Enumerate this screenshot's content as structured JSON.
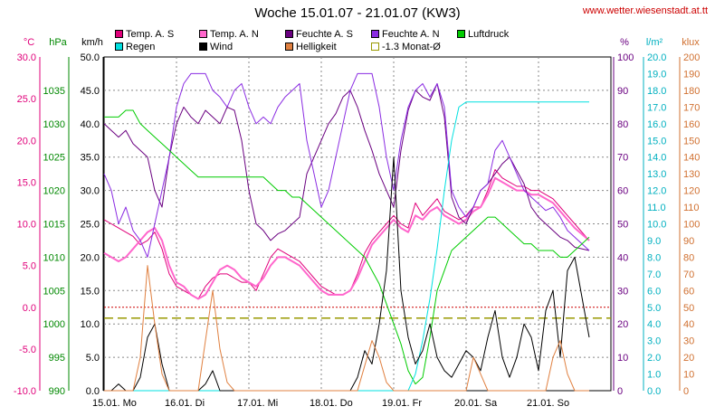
{
  "chart_data": {
    "type": "line",
    "title": "Woche 15.01.07 - 21.01.07 (KW3)",
    "source": "www.wetter.wiesenstadt.at.tt",
    "days": [
      "15.01. Mo",
      "16.01. Di",
      "17.01. Mi",
      "18.01. Do",
      "19.01. Fr",
      "20.01. Sa",
      "21.01. So"
    ],
    "axes": {
      "temp": {
        "unit": "°C",
        "color": "#e0007a",
        "min": -10,
        "max": 30,
        "ticks": [
          "30.0",
          "25.0",
          "20.0",
          "15.0",
          "10.0",
          "5.0",
          "0.0",
          "-5.0",
          "-10.0"
        ]
      },
      "pressure": {
        "unit": "hPa",
        "color": "#008800",
        "min": 990,
        "max": 1040,
        "ticks": [
          "1035",
          "1030",
          "1025",
          "1020",
          "1015",
          "1010",
          "1005",
          "1000",
          "995",
          "990"
        ]
      },
      "wind": {
        "unit": "km/h",
        "color": "#000000",
        "min": 0,
        "max": 50,
        "ticks": [
          "50.0",
          "45.0",
          "40.0",
          "35.0",
          "30.0",
          "25.0",
          "20.0",
          "15.0",
          "10.0",
          "5.0",
          "0.0"
        ]
      },
      "humidity": {
        "unit": "%",
        "color": "#6a0080",
        "min": 0,
        "max": 100,
        "ticks": [
          "100",
          "90",
          "80",
          "70",
          "60",
          "50",
          "40",
          "30",
          "20",
          "10",
          "0"
        ]
      },
      "rain": {
        "unit": "l/m²",
        "color": "#00b0c0",
        "min": 0,
        "max": 20,
        "ticks": [
          "20.0",
          "19.0",
          "18.0",
          "17.0",
          "16.0",
          "15.0",
          "14.0",
          "13.0",
          "12.0",
          "11.0",
          "10.0",
          "9.0",
          "8.0",
          "7.0",
          "6.0",
          "5.0",
          "4.0",
          "3.0",
          "2.0",
          "1.0",
          "0.0"
        ]
      },
      "light": {
        "unit": "klux",
        "color": "#d07030",
        "min": 0,
        "max": 200,
        "ticks": [
          "200",
          "190",
          "180",
          "170",
          "160",
          "150",
          "140",
          "130",
          "120",
          "110",
          "100",
          "90",
          "80",
          "70",
          "60",
          "50",
          "40",
          "30",
          "20",
          "10",
          "0"
        ]
      }
    },
    "legend": [
      {
        "label": "Temp. A. S",
        "color": "#e0007a"
      },
      {
        "label": "Temp. A. N",
        "color": "#ff66cc"
      },
      {
        "label": "Feuchte A. S",
        "color": "#6a0080"
      },
      {
        "label": "Feuchte A. N",
        "color": "#8a2be2"
      },
      {
        "label": "Luftdruck",
        "color": "#00cc00"
      },
      {
        "label": "Regen",
        "color": "#00e0e0"
      },
      {
        "label": "Wind",
        "color": "#000000"
      },
      {
        "label": "Helligkeit",
        "color": "#e08040"
      },
      {
        "label": "-1.3 Monat-Ø",
        "color": "#999900"
      }
    ],
    "reference_lines": [
      {
        "axis": "temp",
        "value": 0,
        "color": "#cc0000"
      },
      {
        "axis": "temp",
        "value": -1.3,
        "color": "#999900"
      }
    ],
    "series": [
      {
        "name": "Temp. A. S",
        "axis": "temp",
        "color": "#e0007a",
        "width": 1,
        "x": [
          0,
          0.1,
          0.2,
          0.3,
          0.4,
          0.5,
          0.6,
          0.7,
          0.8,
          0.9,
          1.0,
          1.1,
          1.2,
          1.3,
          1.4,
          1.5,
          1.6,
          1.7,
          1.8,
          1.9,
          2.0,
          2.1,
          2.2,
          2.3,
          2.4,
          2.5,
          2.6,
          2.7,
          2.8,
          2.9,
          3.0,
          3.1,
          3.2,
          3.3,
          3.4,
          3.5,
          3.6,
          3.7,
          3.8,
          3.9,
          4.0,
          4.1,
          4.2,
          4.3,
          4.4,
          4.5,
          4.6,
          4.7,
          4.8,
          4.9,
          5.0,
          5.1,
          5.2,
          5.3,
          5.4,
          5.5,
          5.6,
          5.7,
          5.8,
          5.9,
          6.0,
          6.1,
          6.2,
          6.3,
          6.4,
          6.5,
          6.7
        ],
        "y": [
          10.5,
          10.0,
          9.5,
          9.0,
          8.5,
          7.5,
          8.0,
          9.0,
          7.0,
          4.0,
          2.5,
          2.0,
          1.5,
          1.0,
          2.5,
          3.5,
          4.0,
          4.0,
          3.5,
          3.0,
          3.0,
          2.0,
          4.0,
          6.0,
          7.0,
          6.5,
          6.0,
          5.5,
          4.5,
          3.5,
          2.5,
          2.0,
          1.5,
          1.5,
          2.0,
          4.0,
          6.5,
          8.0,
          9.0,
          10.0,
          11.0,
          10.0,
          9.5,
          12.5,
          11.0,
          12.0,
          13.0,
          11.5,
          11.0,
          10.5,
          11.0,
          12.0,
          12.0,
          14.0,
          16.5,
          15.5,
          15.0,
          14.5,
          14.5,
          14.0,
          14.0,
          13.5,
          13.0,
          12.0,
          11.0,
          10.0,
          8.0
        ]
      },
      {
        "name": "Temp. A. N",
        "axis": "temp",
        "color": "#ff66cc",
        "width": 2,
        "x": [
          0,
          0.1,
          0.2,
          0.3,
          0.4,
          0.5,
          0.6,
          0.7,
          0.8,
          0.9,
          1.0,
          1.1,
          1.2,
          1.3,
          1.4,
          1.5,
          1.6,
          1.7,
          1.8,
          1.9,
          2.0,
          2.1,
          2.2,
          2.3,
          2.4,
          2.5,
          2.6,
          2.7,
          2.8,
          2.9,
          3.0,
          3.1,
          3.2,
          3.3,
          3.4,
          3.5,
          3.6,
          3.7,
          3.8,
          3.9,
          4.0,
          4.1,
          4.2,
          4.3,
          4.4,
          4.5,
          4.6,
          4.7,
          4.8,
          4.9,
          5.0,
          5.1,
          5.2,
          5.3,
          5.4,
          5.5,
          5.6,
          5.7,
          5.8,
          5.9,
          6.0,
          6.1,
          6.2,
          6.3,
          6.4,
          6.5,
          6.7
        ],
        "y": [
          6.5,
          6.0,
          5.5,
          6.0,
          7.0,
          8.0,
          9.0,
          9.5,
          8.0,
          5.0,
          3.0,
          2.5,
          1.5,
          1.0,
          1.5,
          3.0,
          4.5,
          5.0,
          4.5,
          3.5,
          3.0,
          2.5,
          3.5,
          5.0,
          6.0,
          6.0,
          5.5,
          5.0,
          4.0,
          3.0,
          2.0,
          1.5,
          1.5,
          1.5,
          2.0,
          3.5,
          5.5,
          7.5,
          8.5,
          9.5,
          10.5,
          9.5,
          9.0,
          11.0,
          10.5,
          11.5,
          12.0,
          11.0,
          10.5,
          10.0,
          10.5,
          11.5,
          12.0,
          13.5,
          15.5,
          15.0,
          14.5,
          14.0,
          14.0,
          13.5,
          13.5,
          13.0,
          12.5,
          11.5,
          10.5,
          9.5,
          8.0
        ]
      },
      {
        "name": "Feuchte A. S",
        "axis": "humidity",
        "color": "#6a0080",
        "width": 1,
        "x": [
          0,
          0.1,
          0.2,
          0.3,
          0.4,
          0.5,
          0.6,
          0.7,
          0.8,
          0.9,
          1.0,
          1.1,
          1.2,
          1.3,
          1.4,
          1.5,
          1.6,
          1.7,
          1.8,
          1.9,
          2.0,
          2.1,
          2.2,
          2.3,
          2.4,
          2.5,
          2.6,
          2.7,
          2.8,
          2.9,
          3.0,
          3.1,
          3.2,
          3.3,
          3.4,
          3.5,
          3.6,
          3.7,
          3.8,
          3.9,
          4.0,
          4.1,
          4.2,
          4.3,
          4.4,
          4.5,
          4.6,
          4.7,
          4.8,
          4.9,
          5.0,
          5.1,
          5.2,
          5.3,
          5.4,
          5.5,
          5.6,
          5.7,
          5.8,
          5.9,
          6.0,
          6.1,
          6.2,
          6.3,
          6.4,
          6.5,
          6.7
        ],
        "y": [
          80,
          78,
          76,
          78,
          74,
          72,
          70,
          60,
          55,
          70,
          80,
          85,
          82,
          80,
          84,
          82,
          80,
          85,
          84,
          75,
          60,
          50,
          48,
          45,
          47,
          48,
          50,
          52,
          65,
          70,
          75,
          80,
          83,
          88,
          90,
          85,
          78,
          72,
          65,
          60,
          55,
          72,
          84,
          90,
          88,
          87,
          92,
          82,
          58,
          52,
          50,
          55,
          60,
          62,
          65,
          68,
          70,
          66,
          62,
          55,
          52,
          50,
          48,
          46,
          45,
          43,
          42
        ]
      },
      {
        "name": "Feuchte A. N",
        "axis": "humidity",
        "color": "#8a2be2",
        "width": 1,
        "x": [
          0,
          0.1,
          0.2,
          0.3,
          0.4,
          0.5,
          0.6,
          0.7,
          0.8,
          0.9,
          1.0,
          1.1,
          1.2,
          1.3,
          1.4,
          1.5,
          1.6,
          1.7,
          1.8,
          1.9,
          2.0,
          2.1,
          2.2,
          2.3,
          2.4,
          2.5,
          2.6,
          2.7,
          2.8,
          2.9,
          3.0,
          3.1,
          3.2,
          3.3,
          3.4,
          3.5,
          3.6,
          3.7,
          3.8,
          3.9,
          4.0,
          4.1,
          4.2,
          4.3,
          4.4,
          4.5,
          4.6,
          4.7,
          4.8,
          4.9,
          5.0,
          5.1,
          5.2,
          5.3,
          5.4,
          5.5,
          5.6,
          5.7,
          5.8,
          5.9,
          6.0,
          6.1,
          6.2,
          6.3,
          6.4,
          6.5,
          6.7
        ],
        "y": [
          65,
          60,
          50,
          55,
          48,
          45,
          40,
          50,
          60,
          70,
          85,
          92,
          95,
          95,
          95,
          90,
          88,
          85,
          90,
          92,
          85,
          80,
          82,
          80,
          85,
          88,
          90,
          92,
          75,
          65,
          55,
          60,
          70,
          80,
          90,
          95,
          95,
          95,
          85,
          70,
          60,
          75,
          85,
          90,
          92,
          88,
          92,
          85,
          60,
          55,
          52,
          55,
          60,
          62,
          72,
          75,
          70,
          65,
          60,
          58,
          56,
          54,
          55,
          52,
          48,
          46,
          42
        ]
      },
      {
        "name": "Luftdruck",
        "axis": "pressure",
        "color": "#00cc00",
        "width": 1,
        "x": [
          0,
          0.1,
          0.2,
          0.3,
          0.4,
          0.5,
          0.6,
          0.7,
          0.8,
          0.9,
          1.0,
          1.1,
          1.2,
          1.3,
          1.4,
          1.5,
          1.6,
          1.7,
          1.8,
          1.9,
          2.0,
          2.1,
          2.2,
          2.3,
          2.4,
          2.5,
          2.6,
          2.7,
          2.8,
          2.9,
          3.0,
          3.1,
          3.2,
          3.3,
          3.4,
          3.5,
          3.6,
          3.7,
          3.8,
          3.9,
          4.0,
          4.1,
          4.2,
          4.3,
          4.4,
          4.5,
          4.6,
          4.7,
          4.8,
          4.9,
          5.0,
          5.1,
          5.2,
          5.3,
          5.4,
          5.5,
          5.6,
          5.7,
          5.8,
          5.9,
          6.0,
          6.1,
          6.2,
          6.3,
          6.4,
          6.5,
          6.7
        ],
        "y": [
          1031,
          1031,
          1031,
          1032,
          1032,
          1030,
          1029,
          1028,
          1027,
          1026,
          1025,
          1024,
          1023,
          1022,
          1022,
          1022,
          1022,
          1022,
          1022,
          1022,
          1022,
          1022,
          1022,
          1021,
          1020,
          1020,
          1019,
          1019,
          1018,
          1017,
          1016,
          1015,
          1014,
          1013,
          1012,
          1011,
          1010,
          1008,
          1006,
          1003,
          1000,
          997,
          993,
          991,
          992,
          998,
          1005,
          1008,
          1011,
          1012,
          1013,
          1014,
          1015,
          1016,
          1016,
          1015,
          1014,
          1013,
          1012,
          1012,
          1011,
          1011,
          1011,
          1010,
          1010,
          1011,
          1013
        ]
      },
      {
        "name": "Regen",
        "axis": "rain",
        "color": "#00e0e0",
        "width": 1,
        "x": [
          0,
          4.2,
          4.3,
          4.4,
          4.5,
          4.6,
          4.7,
          4.8,
          4.9,
          5.0,
          6.7
        ],
        "y": [
          0,
          0,
          1.0,
          3.0,
          5.5,
          8.5,
          12.0,
          15.0,
          17.0,
          17.3,
          17.3
        ]
      },
      {
        "name": "Wind",
        "axis": "wind",
        "color": "#000000",
        "width": 1,
        "x": [
          0,
          0.1,
          0.2,
          0.3,
          0.4,
          0.5,
          0.6,
          0.7,
          0.8,
          0.9,
          1.0,
          1.1,
          1.2,
          1.3,
          1.4,
          1.5,
          1.6,
          1.7,
          1.8,
          1.9,
          2.0,
          2.1,
          2.2,
          2.3,
          2.4,
          2.5,
          2.6,
          2.7,
          2.8,
          2.9,
          3.0,
          3.1,
          3.2,
          3.3,
          3.4,
          3.5,
          3.6,
          3.7,
          3.8,
          3.9,
          4.0,
          4.1,
          4.2,
          4.3,
          4.4,
          4.5,
          4.6,
          4.7,
          4.8,
          4.9,
          5.0,
          5.1,
          5.2,
          5.3,
          5.4,
          5.5,
          5.6,
          5.7,
          5.8,
          5.9,
          6.0,
          6.1,
          6.2,
          6.3,
          6.4,
          6.5,
          6.7
        ],
        "y": [
          0,
          0,
          1,
          0,
          0,
          2,
          8,
          10,
          4,
          0,
          0,
          0,
          0,
          0,
          1,
          3,
          0,
          0,
          0,
          0,
          0,
          0,
          0,
          0,
          0,
          0,
          0,
          0,
          0,
          0,
          0,
          0,
          0,
          0,
          0,
          2,
          6,
          4,
          10,
          18,
          35,
          15,
          8,
          4,
          6,
          10,
          5,
          3,
          2,
          4,
          6,
          5,
          3,
          8,
          12,
          5,
          2,
          5,
          10,
          8,
          3,
          12,
          15,
          5,
          18,
          20,
          8
        ]
      },
      {
        "name": "Helligkeit",
        "axis": "light",
        "color": "#e08040",
        "width": 1,
        "x": [
          0,
          0.1,
          0.2,
          0.3,
          0.4,
          0.5,
          0.6,
          0.7,
          0.8,
          0.9,
          1.0,
          1.1,
          1.2,
          1.3,
          1.4,
          1.5,
          1.6,
          1.7,
          1.8,
          1.9,
          2.0,
          2.1,
          2.2,
          2.3,
          2.4,
          2.5,
          2.6,
          2.7,
          2.8,
          2.9,
          3.0,
          3.1,
          3.2,
          3.3,
          3.4,
          3.5,
          3.6,
          3.7,
          3.8,
          3.9,
          4.0,
          4.1,
          4.2,
          4.3,
          4.4,
          4.5,
          4.6,
          4.7,
          4.8,
          4.9,
          5.0,
          5.1,
          5.2,
          5.3,
          5.4,
          5.5,
          5.6,
          5.7,
          5.8,
          5.9,
          6.0,
          6.1,
          6.2,
          6.3,
          6.4,
          6.5,
          6.7
        ],
        "y": [
          0,
          0,
          0,
          0,
          0,
          20,
          75,
          40,
          10,
          0,
          0,
          0,
          0,
          0,
          30,
          60,
          25,
          5,
          0,
          0,
          0,
          0,
          0,
          0,
          0,
          0,
          0,
          0,
          0,
          0,
          0,
          0,
          0,
          0,
          0,
          0,
          15,
          30,
          20,
          5,
          0,
          0,
          0,
          0,
          0,
          0,
          0,
          0,
          0,
          0,
          0,
          20,
          10,
          0,
          0,
          0,
          0,
          0,
          0,
          0,
          0,
          0,
          20,
          30,
          10,
          0,
          0
        ]
      }
    ]
  }
}
